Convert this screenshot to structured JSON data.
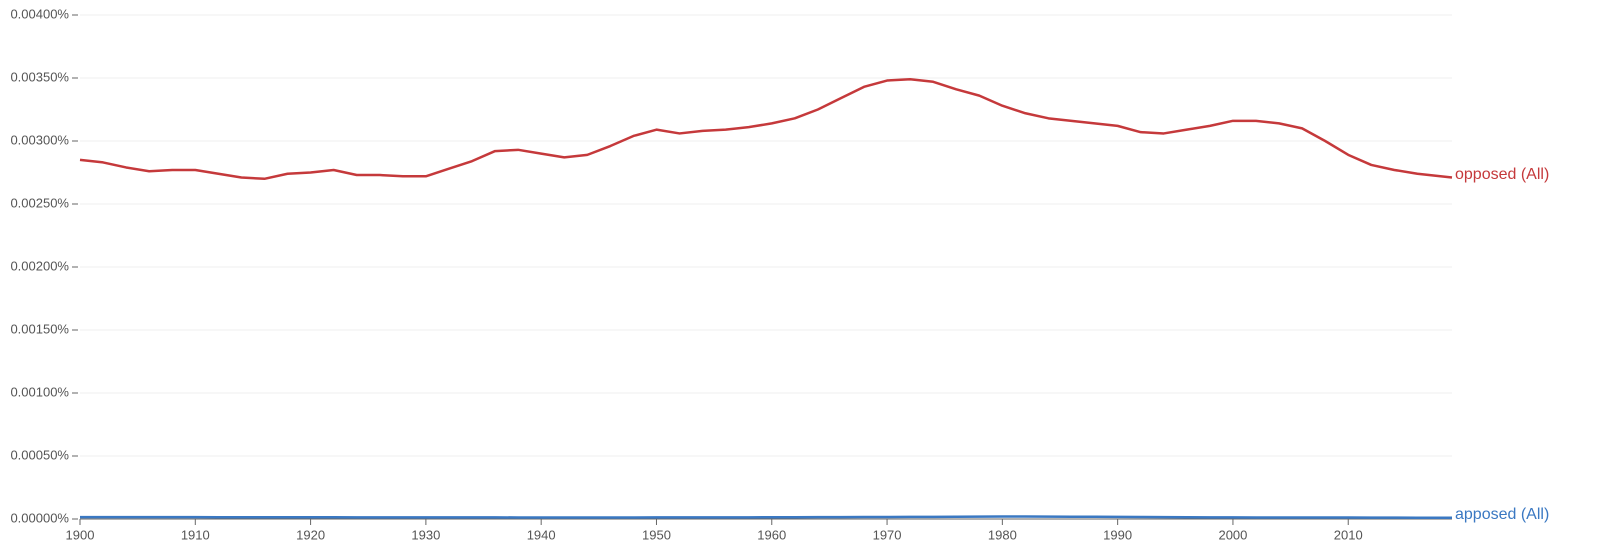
{
  "chart_data": {
    "type": "line",
    "x": [
      1900,
      1902,
      1904,
      1906,
      1908,
      1910,
      1912,
      1914,
      1916,
      1918,
      1920,
      1922,
      1924,
      1926,
      1928,
      1930,
      1932,
      1934,
      1936,
      1938,
      1940,
      1942,
      1944,
      1946,
      1948,
      1950,
      1952,
      1954,
      1956,
      1958,
      1960,
      1962,
      1964,
      1966,
      1968,
      1970,
      1972,
      1974,
      1976,
      1978,
      1980,
      1982,
      1984,
      1986,
      1988,
      1990,
      1992,
      1994,
      1996,
      1998,
      2000,
      2002,
      2004,
      2006,
      2008,
      2010,
      2012,
      2014,
      2016,
      2018,
      2019
    ],
    "series": [
      {
        "name": "opposed (All)",
        "color": "#c5393b",
        "values": [
          0.00285,
          0.00283,
          0.00279,
          0.00276,
          0.00277,
          0.00277,
          0.00274,
          0.00271,
          0.0027,
          0.00274,
          0.00275,
          0.00277,
          0.00273,
          0.00273,
          0.00272,
          0.00272,
          0.00278,
          0.00284,
          0.00292,
          0.00293,
          0.0029,
          0.00287,
          0.00289,
          0.00296,
          0.00304,
          0.00309,
          0.00306,
          0.00308,
          0.00309,
          0.00311,
          0.00314,
          0.00318,
          0.00325,
          0.00334,
          0.00343,
          0.00348,
          0.00349,
          0.00347,
          0.00341,
          0.00336,
          0.00328,
          0.00322,
          0.00318,
          0.00316,
          0.00314,
          0.00312,
          0.00307,
          0.00306,
          0.00309,
          0.00312,
          0.00316,
          0.00316,
          0.00314,
          0.0031,
          0.003,
          0.00289,
          0.00281,
          0.00277,
          0.00274,
          0.00272,
          0.00271
        ]
      },
      {
        "name": "apposed (All)",
        "color": "#3a78c2",
        "values": [
          1.5e-05,
          1.5e-05,
          1.5e-05,
          1.5e-05,
          1.5e-05,
          1.5e-05,
          1.4e-05,
          1.4e-05,
          1.4e-05,
          1.4e-05,
          1.4e-05,
          1.4e-05,
          1.3e-05,
          1.3e-05,
          1.3e-05,
          1.3e-05,
          1.3e-05,
          1.3e-05,
          1.3e-05,
          1.2e-05,
          1.2e-05,
          1.2e-05,
          1.2e-05,
          1.2e-05,
          1.2e-05,
          1.3e-05,
          1.3e-05,
          1.3e-05,
          1.3e-05,
          1.3e-05,
          1.4e-05,
          1.4e-05,
          1.5e-05,
          1.5e-05,
          1.6e-05,
          1.6e-05,
          1.7e-05,
          1.7e-05,
          1.8e-05,
          1.9e-05,
          2e-05,
          2e-05,
          1.9e-05,
          1.8e-05,
          1.8e-05,
          1.7e-05,
          1.6e-05,
          1.5e-05,
          1.4e-05,
          1.3e-05,
          1.3e-05,
          1.2e-05,
          1.2e-05,
          1.2e-05,
          1.2e-05,
          1.2e-05,
          1.1e-05,
          1.1e-05,
          1e-05,
          1e-05,
          1e-05
        ]
      }
    ],
    "xlim": [
      1900,
      2019
    ],
    "xticks": [
      1900,
      1910,
      1920,
      1930,
      1940,
      1950,
      1960,
      1970,
      1980,
      1990,
      2000,
      2010
    ],
    "ylim": [
      0,
      0.004
    ],
    "yticks": [
      {
        "value": 0,
        "label": "0.00000%"
      },
      {
        "value": 0.0005,
        "label": "0.00050%"
      },
      {
        "value": 0.001,
        "label": "0.00100%"
      },
      {
        "value": 0.0015,
        "label": "0.00150%"
      },
      {
        "value": 0.002,
        "label": "0.00200%"
      },
      {
        "value": 0.0025,
        "label": "0.00250%"
      },
      {
        "value": 0.003,
        "label": "0.00300%"
      },
      {
        "value": 0.0035,
        "label": "0.00350%"
      },
      {
        "value": 0.004,
        "label": "0.00400%"
      }
    ],
    "grid": true
  }
}
